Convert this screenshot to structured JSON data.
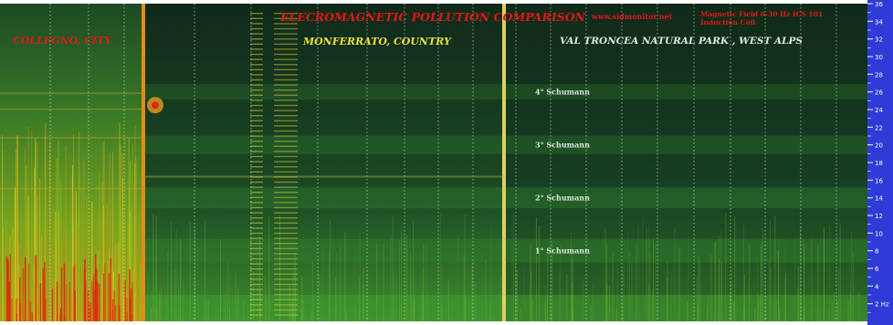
{
  "chart_data": {
    "type": "heatmap",
    "title": "ELECROMAGNETIC POLLUTION COMPARISON",
    "source": "www.sidmonitor.net",
    "instrument_line1": "Magnetic Field 0-30 Hz ICS 101",
    "instrument_line2": "Induction Coil",
    "y_unit": "Hz",
    "ylim": [
      0,
      36
    ],
    "y_ticks": [
      "2",
      "4",
      "6",
      "8",
      "10",
      "12",
      "14",
      "16",
      "18",
      "20",
      "22",
      "24",
      "26",
      "28",
      "30",
      "32",
      "34",
      "36"
    ],
    "segments": [
      {
        "name": "COLLEGNO, CITY",
        "label_color": "#e01818"
      },
      {
        "name": "MONFERRATO, COUNTRY",
        "label_color": "#e8e040"
      },
      {
        "name": "VAL TRONCEA NATURAL PARK , WEST ALPS",
        "label_color": "#dde8dd"
      }
    ],
    "resonances": [
      {
        "label": "1° Schumann",
        "freq_hz": 8
      },
      {
        "label": "2° Schumann",
        "freq_hz": 14
      },
      {
        "label": "3° Schumann",
        "freq_hz": 20
      },
      {
        "label": "4° Schumann",
        "freq_hz": 26
      }
    ],
    "colors": {
      "background": "#12331f",
      "band": "#2f7a2c",
      "noise_high": "#e8d020",
      "noise_peak": "#e02010",
      "divider": "#e0d060",
      "axis_bar": "#2f3bd6"
    }
  }
}
